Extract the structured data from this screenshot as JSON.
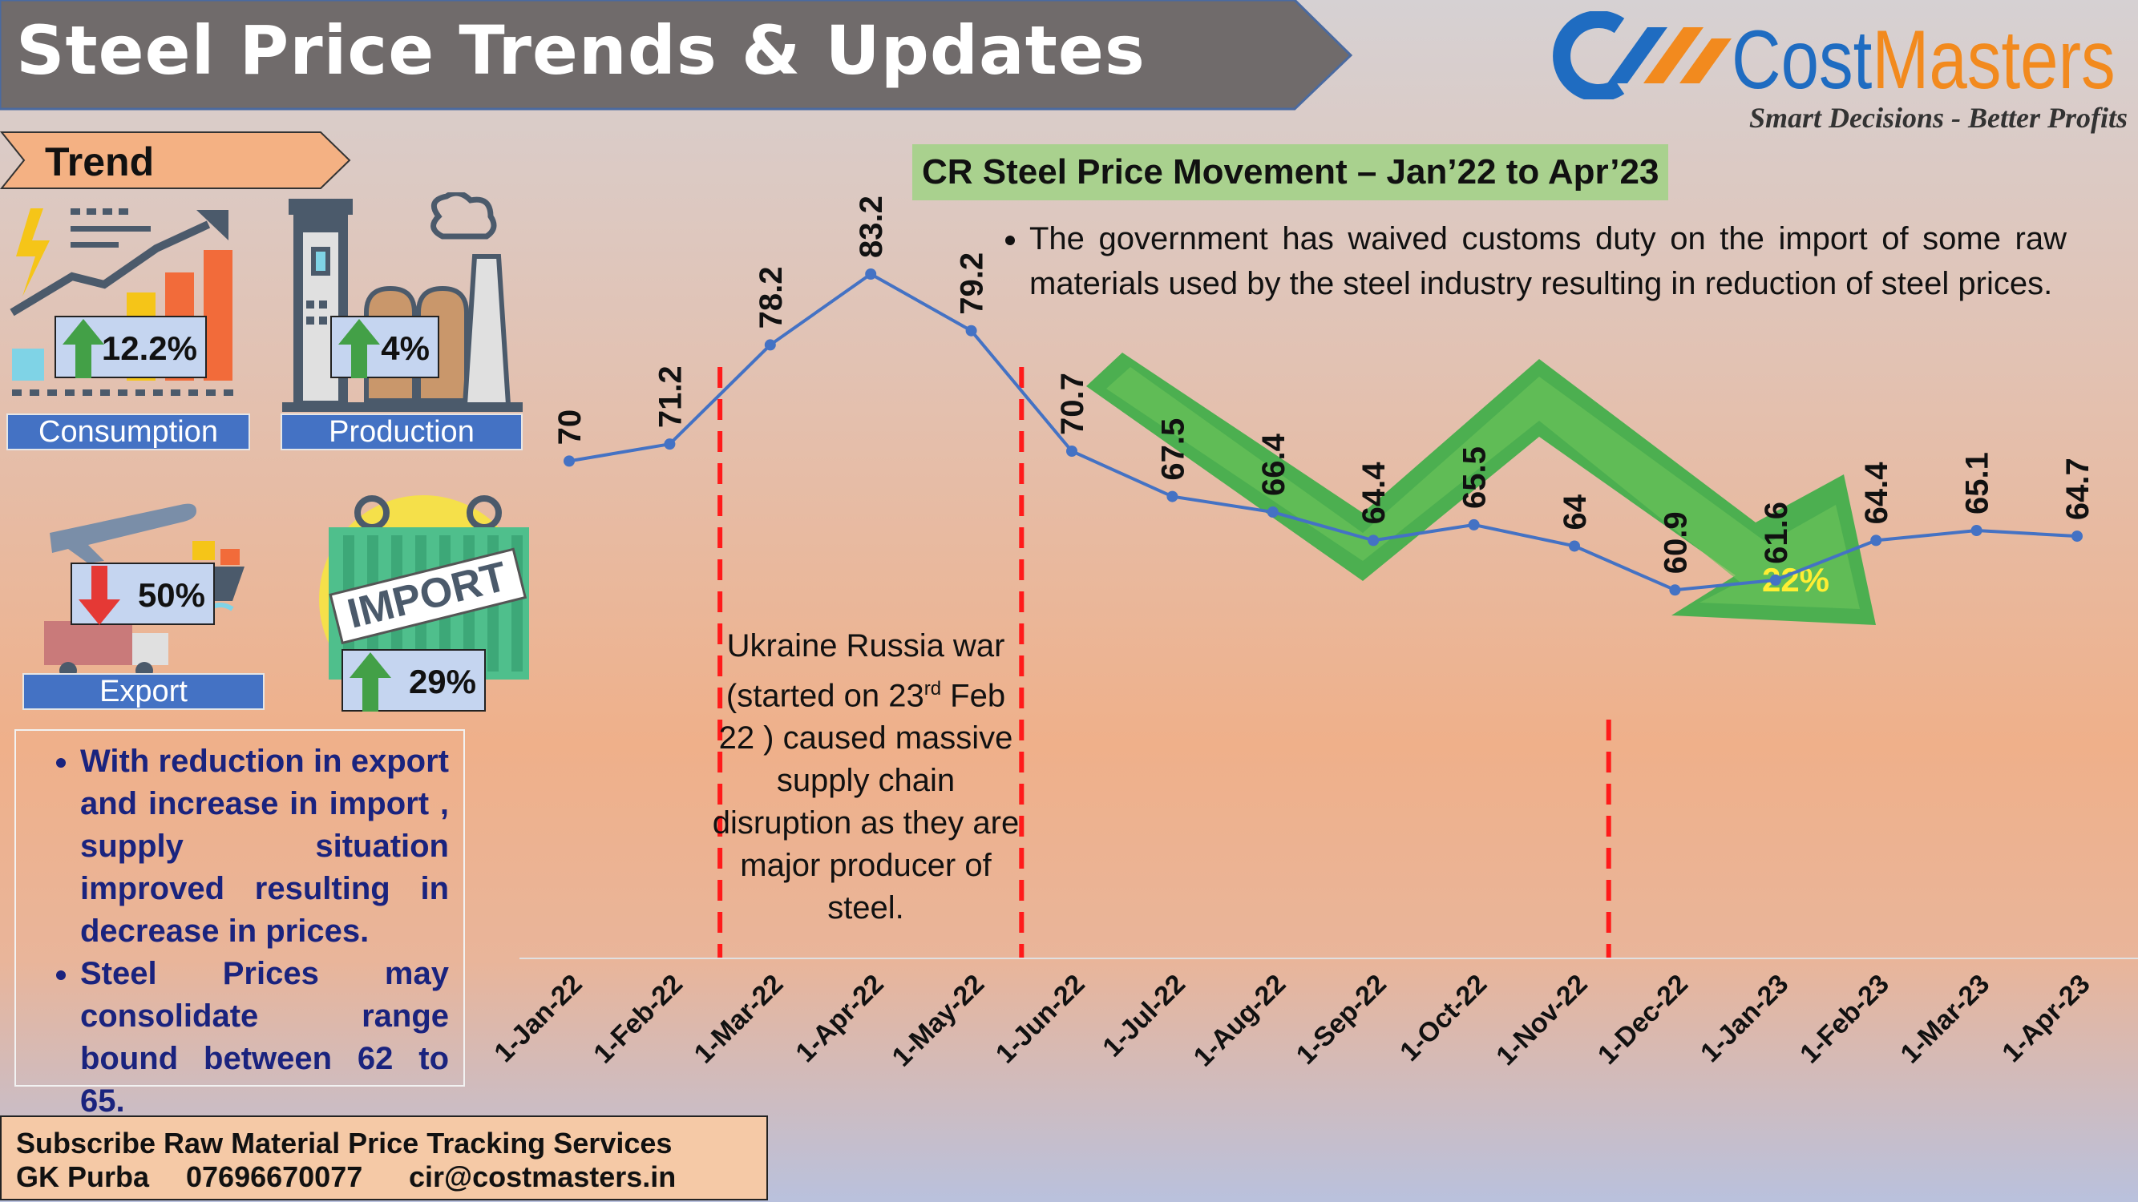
{
  "header": {
    "title": "Steel Price Trends & Updates"
  },
  "logo": {
    "name_part1": "Cost",
    "name_part2": "Masters",
    "tagline": "Smart Decisions - Better Profits"
  },
  "trend": {
    "label": "Trend",
    "items": [
      {
        "label": "Consumption",
        "value": "12.2%",
        "direction": "up",
        "icon": "consumption-chart-icon"
      },
      {
        "label": "Production",
        "value": "4%",
        "direction": "up",
        "icon": "factory-icon"
      },
      {
        "label": "Export",
        "value": "50%",
        "direction": "down",
        "icon": "export-plane-ship-icon"
      },
      {
        "label": "",
        "value": "29%",
        "direction": "up",
        "icon": "import-container-icon",
        "icon_text": "IMPORT"
      }
    ],
    "colors": {
      "up_arrow": "#43a047",
      "down_arrow": "#e53935",
      "label_bar": "#4472c4"
    }
  },
  "notes": {
    "bullets": [
      "With reduction in export and increase in import , supply situation improved resulting in decrease in prices.",
      "Steel Prices may consolidate range bound between 62 to 65."
    ]
  },
  "subscribe": {
    "line1": "Subscribe Raw Material Price Tracking Services",
    "name": "GK Purba",
    "phone": "07696670077",
    "email": "cir@costmasters.in"
  },
  "chart_heading": "CR Steel Price Movement – Jan’22 to Apr’23",
  "gov_note": "The government has waived customs duty on the import of some raw materials used by the steel industry resulting in reduction of steel prices.",
  "war_note": {
    "before_sup": "Ukraine Russia war (started on 23",
    "sup": "rd",
    "after_sup": " Feb 22 ) caused massive supply chain disruption as they are major producer of steel."
  },
  "down_arrow_label": "22%",
  "chart_data": {
    "type": "line",
    "title": "CR Steel Price Movement – Jan’22 to Apr’23",
    "categories": [
      "1-Jan-22",
      "1-Feb-22",
      "1-Mar-22",
      "1-Apr-22",
      "1-May-22",
      "1-Jun-22",
      "1-Jul-22",
      "1-Aug-22",
      "1-Sep-22",
      "1-Oct-22",
      "1-Nov-22",
      "1-Dec-22",
      "1-Jan-23",
      "1-Feb-23",
      "1-Mar-23",
      "1-Apr-23"
    ],
    "series": [
      {
        "values": [
          70,
          71.2,
          78.2,
          83.2,
          79.2,
          70.7,
          67.5,
          66.4,
          64.4,
          65.5,
          64,
          60.9,
          61.6,
          64.4,
          65.1,
          64.7
        ]
      }
    ],
    "data_labels": [
      "70",
      "71.2",
      "78.2",
      "83.2",
      "79.2",
      "70.7",
      "67.5",
      "66.4",
      "64.4",
      "65.5",
      "64",
      "60.9",
      "61.6",
      "64.4",
      "65.1",
      "64.7"
    ],
    "markers": {
      "dashed_lines_between": [
        [
          1,
          2
        ],
        [
          4,
          5
        ],
        [
          10,
          11
        ]
      ],
      "dashed_color": "#ff1a1a"
    },
    "line_color": "#4472c4",
    "grid": false,
    "y_axis_visible": false
  }
}
